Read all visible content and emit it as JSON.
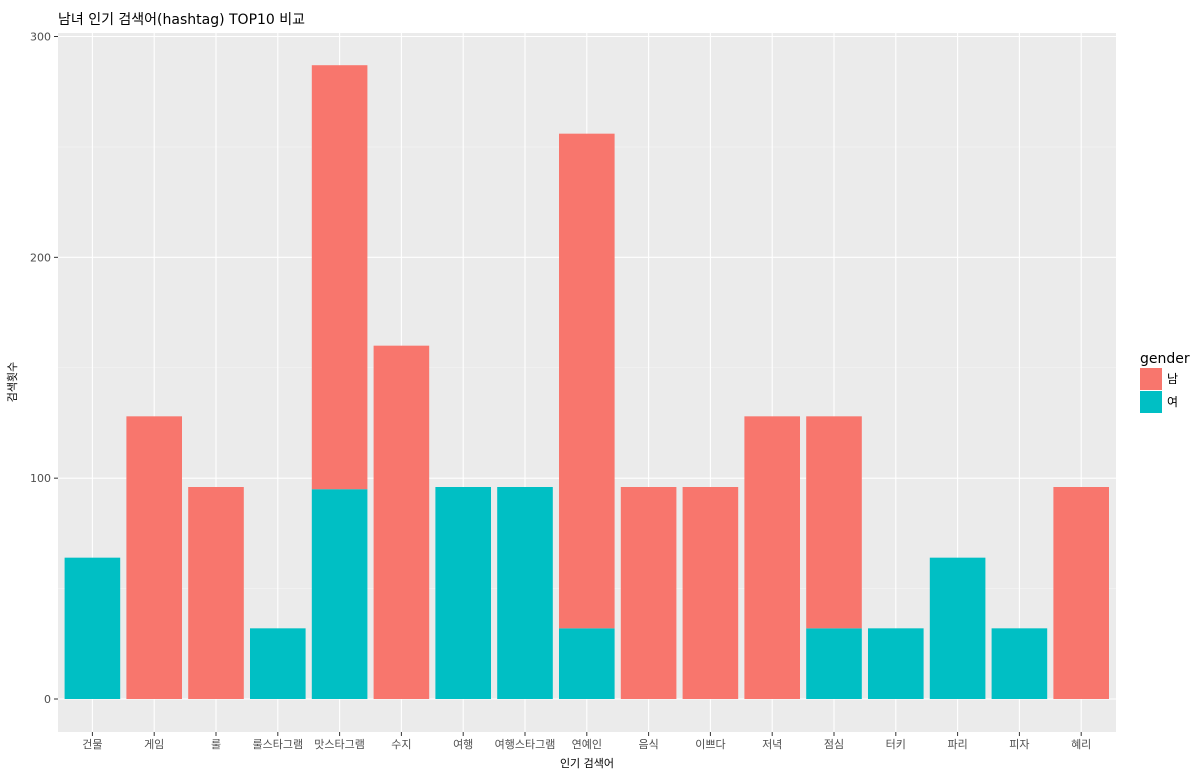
{
  "chart_data": {
    "type": "bar",
    "stacked": true,
    "title": "남녀 인기 검색어(hashtag) TOP10 비교",
    "xlabel": "인기 검색어",
    "ylabel": "검색횟수",
    "ylim": [
      0,
      300
    ],
    "yticks": [
      0,
      100,
      200,
      300
    ],
    "grid": true,
    "legend": {
      "title": "gender",
      "placement": "right"
    },
    "categories": [
      "건물",
      "게임",
      "룰",
      "룰스타그램",
      "맛스타그램",
      "수지",
      "여행",
      "여행스타그램",
      "연예인",
      "음식",
      "이쁘다",
      "저녁",
      "점심",
      "터키",
      "파리",
      "피자",
      "혜리"
    ],
    "series": [
      {
        "name": "여",
        "color": "#00BFC4",
        "values": [
          64,
          0,
          0,
          32,
          95,
          0,
          96,
          96,
          32,
          0,
          0,
          0,
          32,
          32,
          64,
          32,
          0
        ]
      },
      {
        "name": "남",
        "color": "#F8766D",
        "values": [
          0,
          128,
          96,
          0,
          192,
          160,
          0,
          0,
          224,
          96,
          96,
          128,
          96,
          0,
          0,
          0,
          96
        ]
      }
    ]
  }
}
